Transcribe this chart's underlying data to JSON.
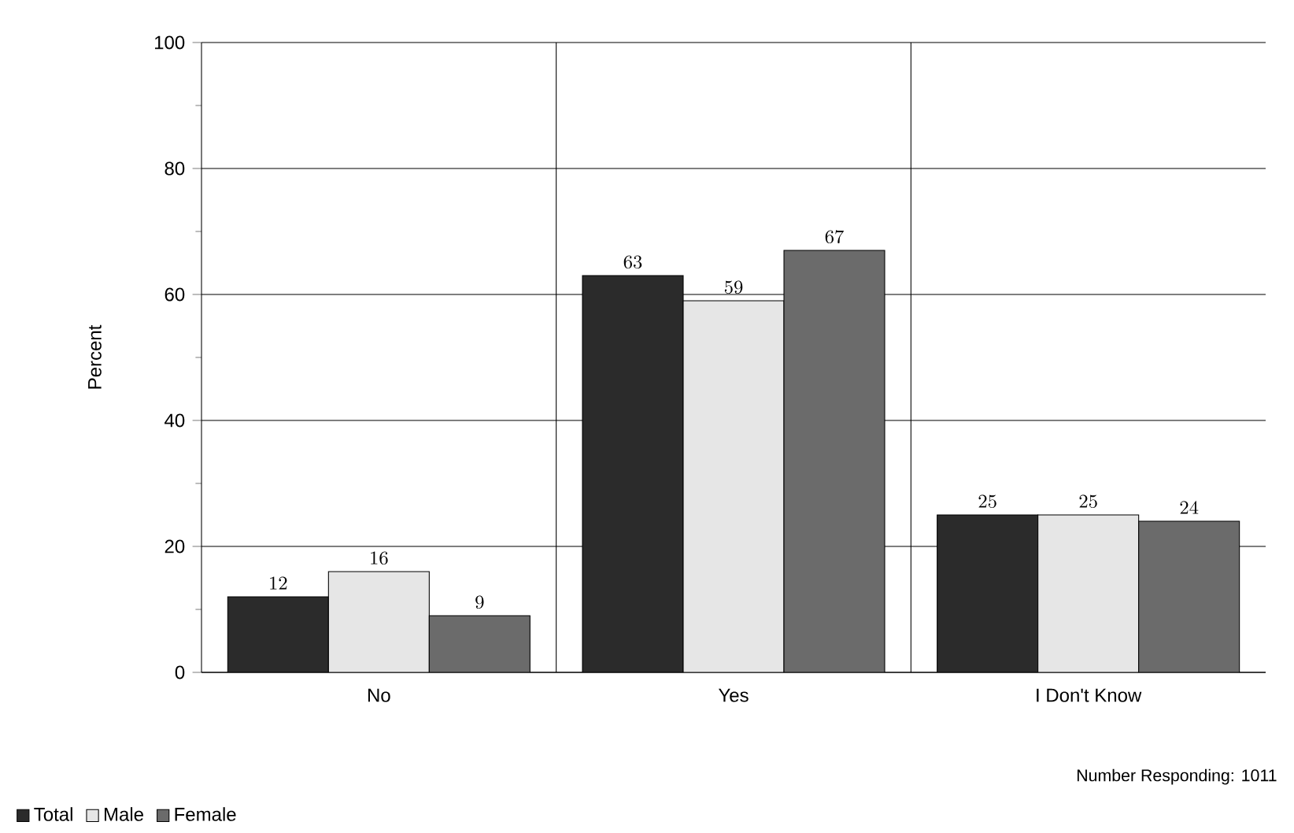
{
  "chart_data": {
    "type": "bar",
    "ylabel": "Percent",
    "categories": [
      "No",
      "Yes",
      "I Don't Know"
    ],
    "series": [
      {
        "name": "Total",
        "color": "#2b2b2b",
        "values": [
          12,
          63,
          25
        ]
      },
      {
        "name": "Male",
        "color": "#e6e6e6",
        "values": [
          16,
          59,
          25
        ]
      },
      {
        "name": "Female",
        "color": "#6b6b6b",
        "values": [
          9,
          67,
          24
        ]
      }
    ],
    "ylim": [
      0,
      100
    ],
    "yticks": [
      0,
      20,
      40,
      60,
      80,
      100
    ],
    "grid": true,
    "legend": "bottom left",
    "data_labels": true,
    "annotations": [
      "Number Responding:  1011"
    ]
  }
}
